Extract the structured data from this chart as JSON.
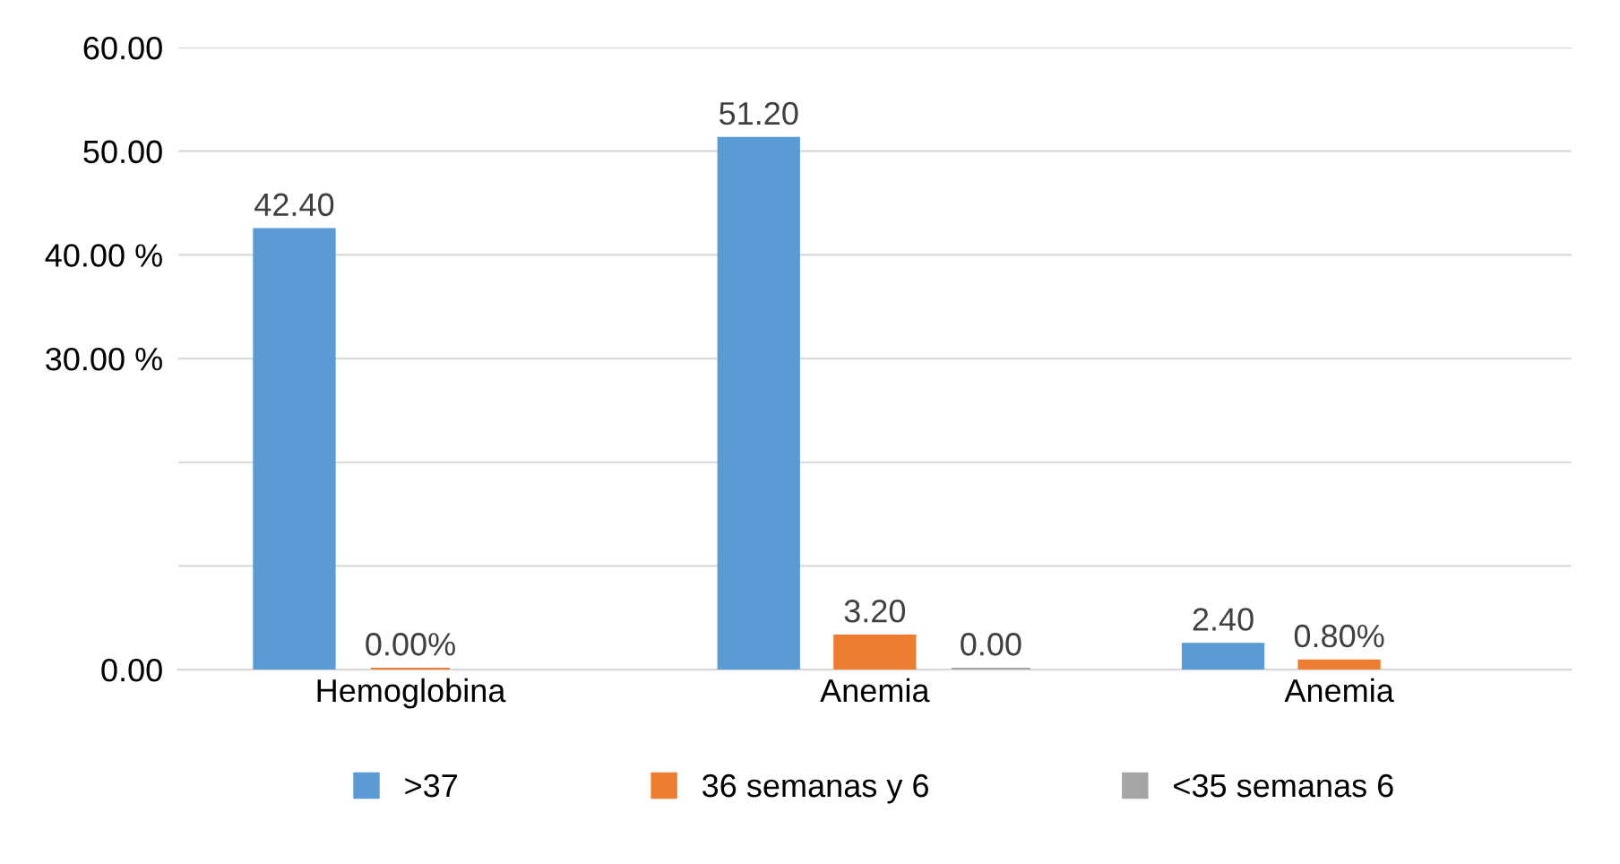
{
  "chart_data": {
    "type": "bar",
    "categories": [
      "Hemoglobina",
      "Anemia",
      "Anemia"
    ],
    "series": [
      {
        "name": ">37",
        "color": "#5b9bd5",
        "values": [
          42.4,
          51.2,
          2.4
        ],
        "value_labels": [
          "42.40",
          "51.20",
          "2.40"
        ]
      },
      {
        "name": "36 semanas y 6",
        "color": "#ed7d31",
        "values": [
          0,
          3.2,
          0.8
        ],
        "value_labels": [
          "0.00%",
          "3.20",
          "0.80%"
        ]
      },
      {
        "name": "<35 semanas 6",
        "color": "#a5a5a5",
        "values": [
          null,
          0,
          null
        ],
        "value_labels": [
          null,
          "0.00",
          null
        ]
      }
    ],
    "ylim": [
      0,
      60
    ],
    "yticks": [
      {
        "value": 0,
        "label": "0.00"
      },
      {
        "value": 10,
        "label": null
      },
      {
        "value": 20,
        "label": null
      },
      {
        "value": 30,
        "label": "30.00 %"
      },
      {
        "value": 40,
        "label": "40.00 %"
      },
      {
        "value": 50,
        "label": "50.00"
      },
      {
        "value": 60,
        "label": "60.00"
      }
    ],
    "grid": "y",
    "legend": "bottom"
  }
}
